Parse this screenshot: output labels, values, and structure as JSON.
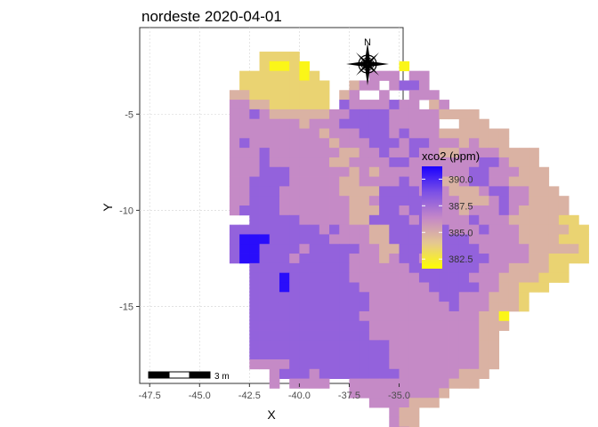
{
  "chart_data": {
    "type": "heatmap",
    "title": "nordeste 2020-04-01",
    "xlabel": "X",
    "ylabel": "Y",
    "xlim": [
      -48.0,
      -34.8
    ],
    "ylim": [
      -19.0,
      -0.5
    ],
    "x_ticks": [
      -47.5,
      -45.0,
      -42.5,
      -40.0,
      -37.5,
      -35.0
    ],
    "x_tick_labels": [
      "-47.5",
      "-45.0",
      "-42.5",
      "-40.0",
      "-37.5",
      "-35.0"
    ],
    "y_ticks": [
      -5,
      -10,
      -15
    ],
    "y_tick_labels": [
      "-5",
      "-10",
      "-15"
    ],
    "grid": true,
    "cell_size_deg": 0.5,
    "grid_origin": [
      -47.25,
      -2.0
    ],
    "color_scale": {
      "title": "xco2 (ppm)",
      "ticks": [
        390.0,
        387.5,
        385.0,
        382.5
      ],
      "tick_labels": [
        "390.0",
        "387.5",
        "385.0",
        "382.5"
      ],
      "min": 381.6,
      "max": 391.2,
      "stops": [
        "#ffff00",
        "#e5c890",
        "#c487c8",
        "#7b50e6",
        "#1900ff"
      ]
    },
    "legend_position": "right",
    "north_arrow": {
      "label": "N",
      "position": "top-right"
    },
    "scale_bar": {
      "label": "3 m",
      "position": "bottom-left"
    },
    "rows": [
      "...........aaaa",
      "...........aAAaA.........A",
      ".........aaaaaaAa.....ccc.cc",
      ".........aaaaaaaaa..bcc.cddc",
      "........bbaaaaaaaa.bc..c..ccc",
      "........ccbbaaaaaa.dccccdcc.bc",
      "........ccdcbbbbbbccddddcccccbbbb",
      "........cccccccbcccdddddccccc..bbb",
      "........cccccccccbcccdddcdcccbbbbbbb",
      "........cdccccccccbcccdddcddcccbcbbb",
      "........cccdcccccccbbccdccdccbbccccbbbb",
      "........cccdccccccbbccccddcccccccddcbbb",
      "........cccdddccccccbcbcccccccccddcccbbb",
      "........ccddddcccccbbccccdccbbbcddccbbbb",
      "........ccdddccccccbbbbddddcccbbbcddccbbb",
      "........ccdddcccccccbbcdddddcccbbbcdccbbbb",
      "........cddddcccccccbbbddcddcccbcccdcbbbbb",
      "..........dddddcccccbbddddcddcccdcccbbbbbaa",
      "........dddddddddcdcccbbddddddcccdcccbbbbbaa",
      "........dxxxddddddccccbbddddddddcccccbbbbaaa",
      "........dxxddddcdddddccbbddddddddcccccbbbbba",
      "........dxxdddcdddddcccbcddcddddddccccbbaaaa",
      "..........ddddddddddccccccdddddddcccbbbbaa",
      "..........dddxddddddcccccccdddddcccbbbbaaa",
      "..........dddxdddddddcccccccdddddccbbaaa",
      "..........ddddddddddddcccccccddcccbbba",
      "..........ddddddddddddccccccccdcccbbba",
      "..........dddddddddddccccccccccccbbA",
      "..........ddddddddddddcccccccccccbbb",
      "..........ddddddddddddcccccccccccbb",
      "..........ddddddddddddddcccccccccbb",
      "..........ddddddddddddddcccccccccbb",
      "..........ccccddddddddddcccccccccbb",
      "............cdddcddddddddccccccbbb",
      "............c.cccc..ccccccccccbbb",
      "....................cccccccccb",
      "......................ccccbbb",
      "........................cbb",
      "........................cbb",
      "........................ccb",
      "........................ccb"
    ],
    "palette_values": {
      "A": 382.0,
      "a": 383.5,
      "b": 384.8,
      "c": 386.3,
      "d": 388.0,
      "x": 390.8
    }
  }
}
